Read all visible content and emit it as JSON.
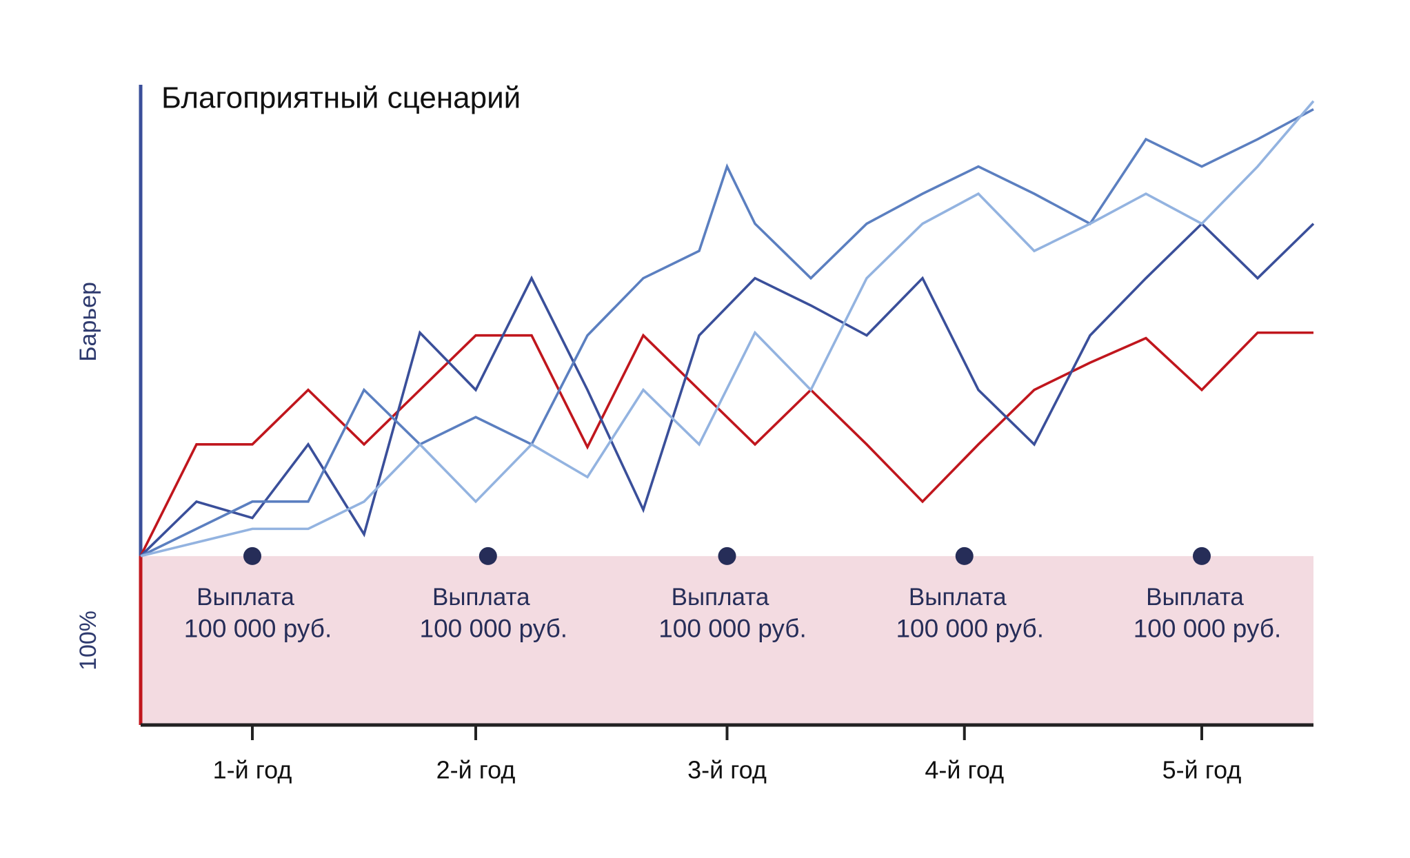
{
  "chart_data": {
    "type": "line",
    "title": "Благоприятный сценарий",
    "xlim": [
      0,
      21
    ],
    "ylim": [
      38,
      273
    ],
    "xticks": [
      {
        "value": 2,
        "label": "1-й год"
      },
      {
        "value": 6,
        "label": "2-й год"
      },
      {
        "value": 10.5,
        "label": "3-й год"
      },
      {
        "value": 14.75,
        "label": "4-й год"
      },
      {
        "value": 19,
        "label": "5-й год"
      }
    ],
    "barrier": {
      "label": "Барьер",
      "value": 186
    },
    "base": {
      "label": "100%",
      "value": 100,
      "color": "#f3dbe1"
    },
    "payments": [
      {
        "x": 2,
        "label": "Выплата",
        "amount": "100 000 руб."
      },
      {
        "x": 6.22,
        "label": "Выплата",
        "amount": "100 000 руб."
      },
      {
        "x": 10.5,
        "label": "Выплата",
        "amount": "100 000 руб."
      },
      {
        "x": 14.75,
        "label": "Выплата",
        "amount": "100 000 руб."
      },
      {
        "x": 19,
        "label": "Выплата",
        "amount": "100 000 руб."
      }
    ],
    "series": [
      {
        "color": "#c0161d",
        "x": [
          0,
          1,
          2,
          3,
          4,
          5,
          6,
          7,
          8,
          9,
          10,
          11,
          12,
          13,
          14,
          15,
          16,
          17,
          18,
          19,
          20,
          21
        ],
        "values": [
          100,
          141,
          141,
          161,
          141,
          161,
          181,
          181,
          140,
          181,
          161,
          141,
          161,
          141,
          120,
          141,
          161,
          171,
          180,
          161,
          182,
          182
        ]
      },
      {
        "color": "#3a4f9a",
        "x": [
          0,
          1,
          2,
          3,
          4,
          5,
          6,
          7,
          8,
          9,
          10,
          11,
          12,
          13,
          14,
          15,
          16,
          17,
          18,
          19,
          20,
          21
        ],
        "values": [
          100,
          120,
          114,
          141,
          108,
          182,
          161,
          202,
          161,
          117,
          181,
          202,
          192,
          181,
          202,
          161,
          141,
          181,
          202,
          222,
          202,
          222
        ]
      },
      {
        "color": "#5b7fc0",
        "x": [
          0,
          1,
          2,
          3,
          4,
          5,
          6,
          7,
          8,
          9,
          10,
          10.5,
          11,
          12,
          13,
          14,
          15,
          16,
          17,
          18,
          19,
          20,
          21
        ],
        "values": [
          100,
          110,
          120,
          120,
          161,
          141,
          151,
          141,
          181,
          202,
          212,
          243,
          222,
          202,
          222,
          233,
          243,
          233,
          222,
          253,
          243,
          253,
          264
        ]
      },
      {
        "color": "#93b3e0",
        "x": [
          0,
          1,
          2,
          3,
          4,
          5,
          6,
          7,
          8,
          9,
          10,
          11,
          12,
          13,
          14,
          15,
          16,
          17,
          18,
          19,
          20,
          21
        ],
        "values": [
          100,
          105,
          110,
          110,
          120,
          141,
          120,
          141,
          129,
          161,
          141,
          182,
          161,
          202,
          222,
          233,
          212,
          222,
          233,
          222,
          243,
          267
        ]
      }
    ]
  }
}
